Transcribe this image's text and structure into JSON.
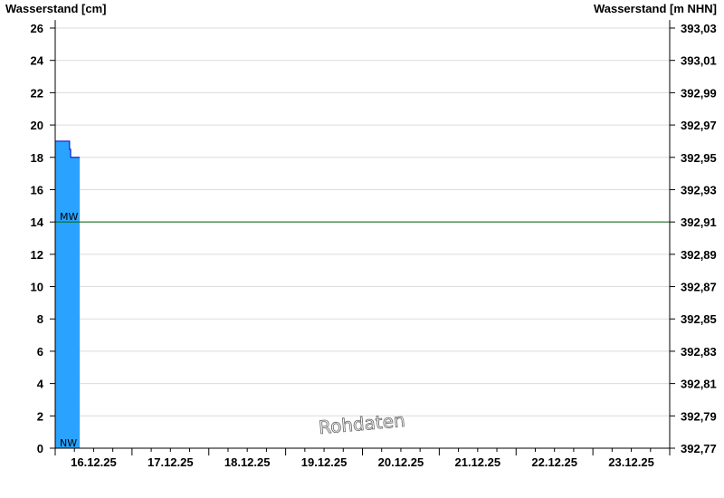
{
  "chart_data": {
    "type": "area",
    "ylabel_left": "Wasserstand [cm]",
    "ylabel_right": "Wasserstand [m NHN]",
    "ylim": [
      0,
      26.5
    ],
    "yticks_left": [
      0,
      2,
      4,
      6,
      8,
      10,
      12,
      14,
      16,
      18,
      20,
      22,
      24,
      26
    ],
    "yticks_right": [
      "392,77",
      "392,79",
      "392,81",
      "392,83",
      "392,85",
      "392,87",
      "392,89",
      "392,91",
      "392,93",
      "392,95",
      "392,97",
      "392,99",
      "393,01",
      "393,03"
    ],
    "xlim": [
      "2025-12-16T00:00",
      "2025-12-24T00:00"
    ],
    "xtick_labels": [
      "16.12.25",
      "17.12.25",
      "18.12.25",
      "19.12.25",
      "20.12.25",
      "21.12.25",
      "22.12.25",
      "23.12.25"
    ],
    "grid": true,
    "series": [
      {
        "values": [
          {
            "t": "2025-12-16T00:00",
            "y": 19
          },
          {
            "t": "2025-12-16T04:30",
            "y": 19
          },
          {
            "t": "2025-12-16T04:30",
            "y": 18.5
          },
          {
            "t": "2025-12-16T04:50",
            "y": 18.5
          },
          {
            "t": "2025-12-16T04:50",
            "y": 18
          },
          {
            "t": "2025-12-16T07:40",
            "y": 18
          }
        ],
        "color": "#29a3ff",
        "edge_color": "#0000cc"
      }
    ],
    "reference_lines": [
      {
        "label": "MW",
        "y": 14,
        "color": "#006400"
      },
      {
        "label": "NW",
        "y": 0,
        "color": "#000000"
      }
    ],
    "watermark": "Rohdaten"
  }
}
